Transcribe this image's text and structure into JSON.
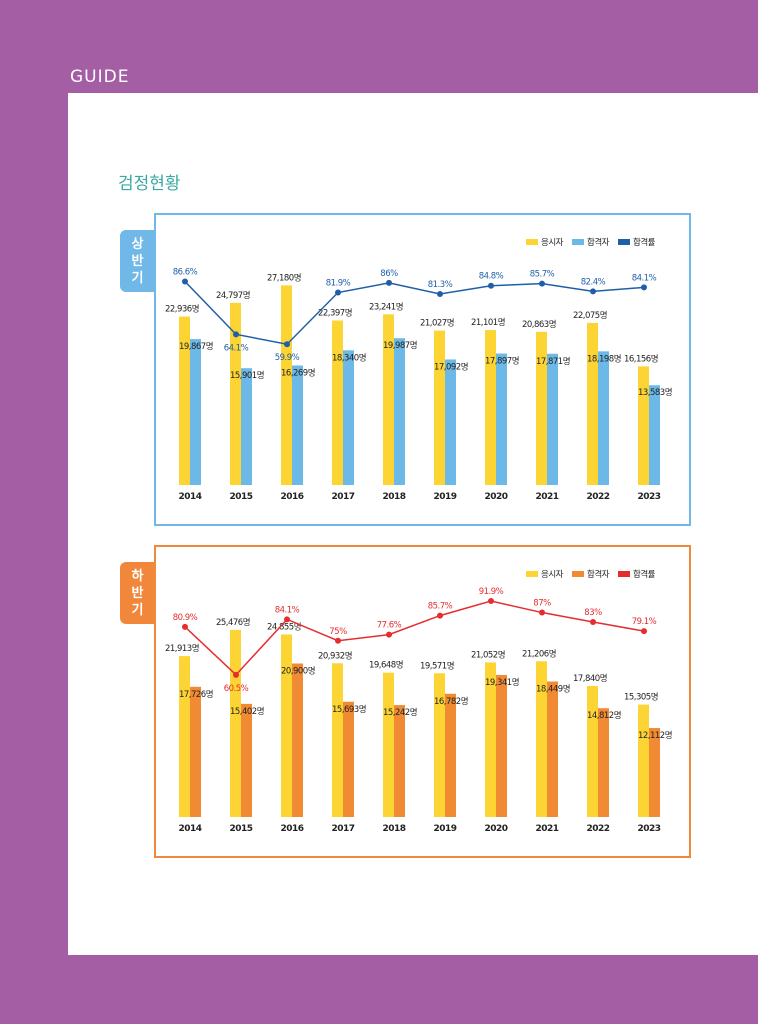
{
  "header": {
    "section": "GUIDE",
    "title": "검정현황"
  },
  "chart_data": [
    {
      "type": "bar",
      "tab": "상반기",
      "frame_color": "#6fb8e8",
      "categories": [
        "2014",
        "2015",
        "2016",
        "2017",
        "2018",
        "2019",
        "2020",
        "2021",
        "2022",
        "2023"
      ],
      "ylim": [
        0,
        32000
      ],
      "y2lim": [
        0,
        100
      ],
      "series": [
        {
          "name": "응시자",
          "color": "#fcd535",
          "values": [
            22936,
            24797,
            27180,
            22397,
            23241,
            21027,
            21101,
            20863,
            22075,
            16156
          ],
          "value_labels": [
            "22,936명",
            "24,797명",
            "27,180명",
            "22,397명",
            "23,241명",
            "21,027명",
            "21,101명",
            "20,863명",
            "22,075명",
            "16,156명"
          ]
        },
        {
          "name": "합격자",
          "color": "#6cb8e6",
          "values": [
            19867,
            15901,
            16269,
            18340,
            19987,
            17092,
            17897,
            17871,
            18198,
            13583
          ],
          "value_labels": [
            "19,867명",
            "15,901명",
            "16,269명",
            "18,340명",
            "19,987명",
            "17,092명",
            "17,897명",
            "17,871명",
            "18,198명",
            "13,583명"
          ]
        },
        {
          "name": "합격률",
          "type": "line",
          "axis": "y2",
          "color": "#1f5fa8",
          "values": [
            86.6,
            64.1,
            59.9,
            81.9,
            86,
            81.3,
            84.8,
            85.7,
            82.4,
            84.1
          ],
          "value_labels": [
            "86.6%",
            "64.1%",
            "59.9%",
            "81.9%",
            "86%",
            "81.3%",
            "84.8%",
            "85.7%",
            "82.4%",
            "84.1%"
          ]
        }
      ]
    },
    {
      "type": "bar",
      "tab": "하반기",
      "frame_color": "#f0873a",
      "categories": [
        "2014",
        "2015",
        "2016",
        "2017",
        "2018",
        "2019",
        "2020",
        "2021",
        "2022",
        "2023"
      ],
      "ylim": [
        0,
        32000
      ],
      "y2lim": [
        0,
        100
      ],
      "series": [
        {
          "name": "응시자",
          "color": "#fcd535",
          "values": [
            21913,
            25476,
            24855,
            20932,
            19648,
            19571,
            21052,
            21206,
            17840,
            15305
          ],
          "value_labels": [
            "21,913명",
            "25,476명",
            "24,855명",
            "20,932명",
            "19,648명",
            "19,571명",
            "21,052명",
            "21,206명",
            "17,840명",
            "15,305명"
          ]
        },
        {
          "name": "합격자",
          "color": "#f08a33",
          "values": [
            17726,
            15402,
            20900,
            15693,
            15242,
            16782,
            19341,
            18449,
            14812,
            12112
          ],
          "value_labels": [
            "17,726명",
            "15,402명",
            "20,900명",
            "15,693명",
            "15,242명",
            "16,782명",
            "19,341명",
            "18,449명",
            "14,812명",
            "12,112명"
          ]
        },
        {
          "name": "합격률",
          "type": "line",
          "axis": "y2",
          "color": "#e52d2f",
          "values": [
            80.9,
            60.5,
            84.1,
            75,
            77.6,
            85.7,
            91.9,
            87,
            83,
            79.1
          ],
          "value_labels": [
            "80.9%",
            "60.5%",
            "84.1%",
            "75%",
            "77.6%",
            "85.7%",
            "91.9%",
            "87%",
            "83%",
            "79.1%"
          ]
        }
      ]
    }
  ]
}
